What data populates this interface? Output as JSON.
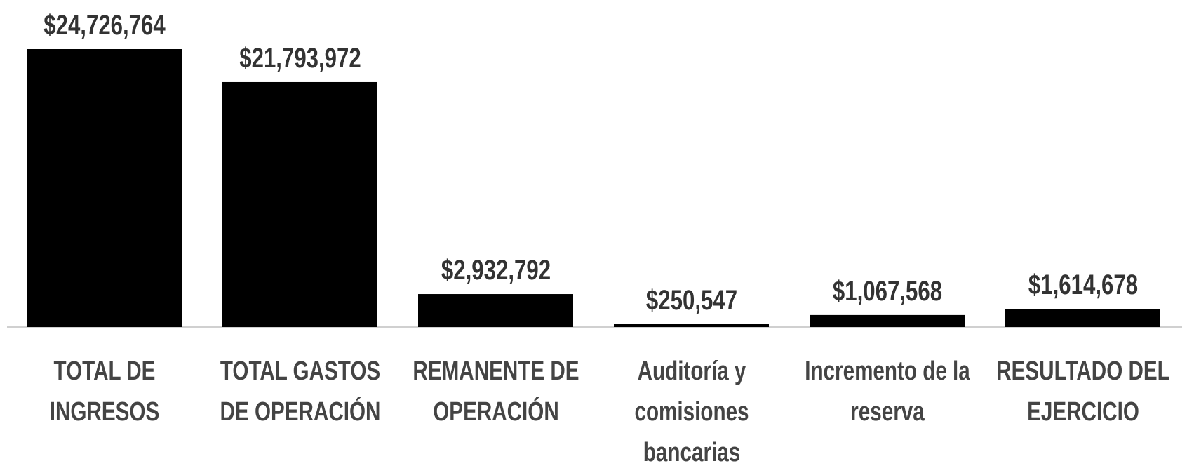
{
  "chart_data": {
    "type": "bar",
    "categories": [
      "TOTAL DE INGRESOS",
      "TOTAL GASTOS DE OPERACIÓN",
      "REMANENTE DE OPERACIÓN",
      "Auditoría y comisiones bancarias",
      "Incremento de la reserva",
      "RESULTADO DEL EJERCICIO"
    ],
    "values": [
      24726764,
      21793972,
      2932792,
      250547,
      1067568,
      1614678
    ],
    "value_labels": [
      "$24,726,764",
      "$21,793,972",
      "$2,932,792",
      "$250,547",
      "$1,067,568",
      "$1,614,678"
    ],
    "color": "#000000"
  }
}
